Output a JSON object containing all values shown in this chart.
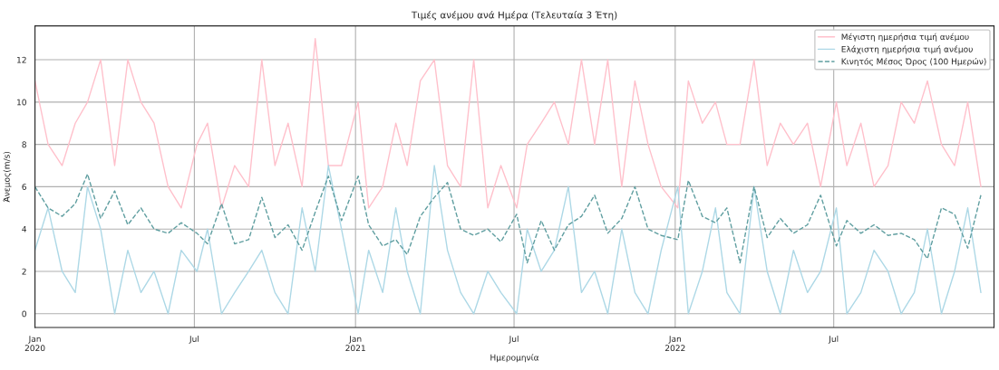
{
  "chart_data": {
    "type": "line",
    "title": "Τιμές ανέμου ανά Ημέρα (Τελευταία 3 Έτη)",
    "xlabel": "Ημερομηνία",
    "ylabel": "Άνεμος(m/s)",
    "x": [
      "2020-01-01",
      "2020-01-16",
      "2020-02-01",
      "2020-02-16",
      "2020-03-01",
      "2020-03-16",
      "2020-04-01",
      "2020-04-16",
      "2020-05-01",
      "2020-05-16",
      "2020-06-01",
      "2020-06-16",
      "2020-07-04",
      "2020-07-16",
      "2020-08-01",
      "2020-08-16",
      "2020-09-01",
      "2020-09-16",
      "2020-10-01",
      "2020-10-16",
      "2020-11-01",
      "2020-11-16",
      "2020-12-01",
      "2020-12-16",
      "2021-01-04",
      "2021-01-16",
      "2021-02-01",
      "2021-02-16",
      "2021-03-01",
      "2021-03-16",
      "2021-04-01",
      "2021-04-16",
      "2021-05-01",
      "2021-05-16",
      "2021-06-01",
      "2021-06-16",
      "2021-07-04",
      "2021-07-16",
      "2021-08-01",
      "2021-08-16",
      "2021-09-01",
      "2021-09-16",
      "2021-10-01",
      "2021-10-16",
      "2021-11-01",
      "2021-11-16",
      "2021-12-01",
      "2021-12-16",
      "2022-01-04",
      "2022-01-16",
      "2022-02-01",
      "2022-02-16",
      "2022-03-01",
      "2022-03-16",
      "2022-04-01",
      "2022-04-16",
      "2022-05-01",
      "2022-05-16",
      "2022-06-01",
      "2022-06-16",
      "2022-07-04",
      "2022-07-16",
      "2022-08-01",
      "2022-08-16",
      "2022-09-01",
      "2022-09-16",
      "2022-10-01",
      "2022-10-16",
      "2022-11-01",
      "2022-11-16",
      "2022-12-01",
      "2022-12-16"
    ],
    "series": [
      {
        "name": "Μέγιστη ημερήσια τιμή ανέμου",
        "color": "#ffc0cb",
        "line_style": "solid",
        "values": [
          11,
          8,
          7,
          9,
          10,
          12,
          7,
          12,
          10,
          9,
          6,
          5,
          8,
          9,
          5,
          7,
          6,
          12,
          7,
          9,
          6,
          13,
          7,
          7,
          10,
          5,
          6,
          9,
          7,
          11,
          12,
          7,
          6,
          12,
          5,
          7,
          5,
          8,
          9,
          10,
          8,
          12,
          8,
          12,
          6,
          11,
          8,
          6,
          5,
          11,
          9,
          10,
          8,
          8,
          12,
          7,
          9,
          8,
          9,
          6,
          10,
          7,
          9,
          6,
          7,
          10,
          9,
          11,
          8,
          7,
          10,
          6
        ]
      },
      {
        "name": "Ελάχιστη ημερήσια τιμή ανέμου",
        "color": "#add8e6",
        "line_style": "solid",
        "values": [
          3,
          5,
          2,
          1,
          6,
          4,
          0,
          3,
          1,
          2,
          0,
          3,
          2,
          4,
          0,
          1,
          2,
          3,
          1,
          0,
          5,
          2,
          7,
          4,
          0,
          3,
          1,
          5,
          2,
          0,
          7,
          3,
          1,
          0,
          2,
          1,
          0,
          4,
          2,
          3,
          6,
          1,
          2,
          0,
          4,
          1,
          0,
          3,
          6,
          0,
          2,
          5,
          1,
          0,
          6,
          2,
          0,
          3,
          1,
          2,
          5,
          0,
          1,
          3,
          2,
          0,
          1,
          4,
          0,
          2,
          5,
          1
        ]
      },
      {
        "name": "Κινητός Μέσος Όρος (100 Ημερών)",
        "color": "#5f9ea0",
        "line_style": "dashed",
        "values": [
          6.0,
          5.0,
          4.6,
          5.2,
          6.6,
          4.5,
          5.8,
          4.2,
          5.0,
          4.0,
          3.8,
          4.3,
          3.8,
          3.3,
          5.2,
          3.3,
          3.5,
          5.5,
          3.6,
          4.2,
          3.0,
          4.8,
          6.5,
          4.4,
          6.5,
          4.2,
          3.2,
          3.5,
          2.8,
          4.6,
          5.5,
          6.2,
          4.0,
          3.7,
          4.0,
          3.4,
          4.7,
          2.4,
          4.4,
          3.0,
          4.2,
          4.6,
          5.6,
          3.8,
          4.5,
          6.0,
          4.0,
          3.7,
          3.5,
          6.3,
          4.6,
          4.3,
          5.0,
          2.4,
          6.0,
          3.6,
          4.5,
          3.8,
          4.2,
          5.6,
          3.2,
          4.4,
          3.8,
          4.2,
          3.7,
          3.8,
          3.5,
          2.6,
          5.0,
          4.7,
          3.1,
          5.6
        ]
      }
    ],
    "xlim": [
      "2020-01-01",
      "2022-12-31"
    ],
    "xticks": [
      {
        "value": "2020-01-01",
        "label": "Jan\n2020"
      },
      {
        "value": "2020-07-01",
        "label": "Jul"
      },
      {
        "value": "2021-01-01",
        "label": "Jan\n2021"
      },
      {
        "value": "2021-07-01",
        "label": "Jul"
      },
      {
        "value": "2022-01-01",
        "label": "Jan\n2022"
      },
      {
        "value": "2022-07-01",
        "label": "Jul"
      }
    ],
    "ylim": [
      -0.65,
      13.6
    ],
    "yticks": [
      0,
      2,
      4,
      6,
      8,
      10,
      12
    ],
    "grid": true,
    "legend": "top right"
  }
}
